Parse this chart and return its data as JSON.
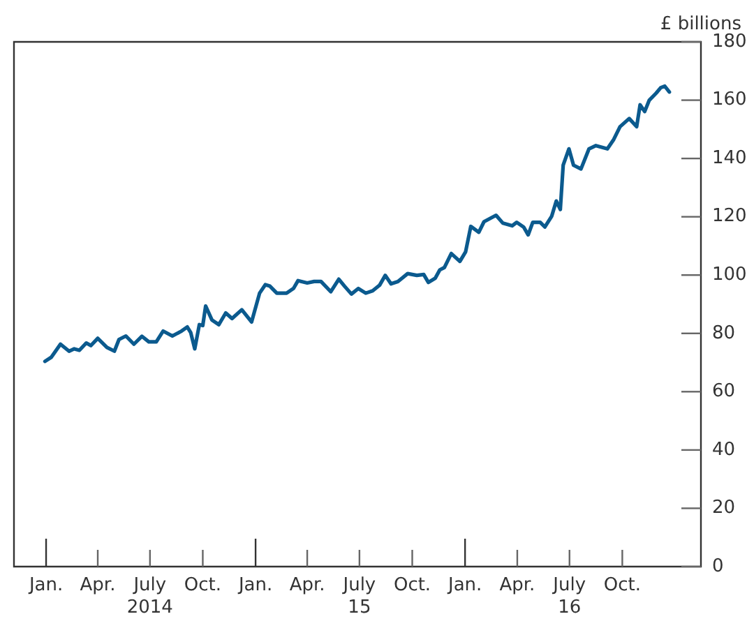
{
  "chart_data": {
    "type": "line",
    "ylabel": "£ billions",
    "color": "#0b5a8e",
    "marker": "none",
    "line_style": "solid",
    "grid": false,
    "legend": false,
    "xlim": [
      "2013-11-06",
      "2017-02-15"
    ],
    "ylim": [
      0,
      180
    ],
    "yticks": [
      0,
      20,
      40,
      60,
      80,
      100,
      120,
      140,
      160,
      180
    ],
    "xticks": [
      {
        "value": "2014-01-01",
        "label": "Jan."
      },
      {
        "value": "2014-04-01",
        "label": "Apr."
      },
      {
        "value": "2014-07-01",
        "label": "July\n2014"
      },
      {
        "value": "2014-10-01",
        "label": "Oct."
      },
      {
        "value": "2015-01-01",
        "label": "Jan."
      },
      {
        "value": "2015-04-01",
        "label": "Apr."
      },
      {
        "value": "2015-07-01",
        "label": "July\n15"
      },
      {
        "value": "2015-10-01",
        "label": "Oct."
      },
      {
        "value": "2016-01-01",
        "label": "Jan."
      },
      {
        "value": "2016-04-01",
        "label": "Apr."
      },
      {
        "value": "2016-07-01",
        "label": "July\n16"
      },
      {
        "value": "2016-10-01",
        "label": "Oct."
      }
    ],
    "x": [
      "2013-12-30",
      "2014-01-10",
      "2014-01-26",
      "2014-02-10",
      "2014-02-19",
      "2014-02-28",
      "2014-03-12",
      "2014-03-20",
      "2014-04-01",
      "2014-04-17",
      "2014-04-30",
      "2014-05-08",
      "2014-05-20",
      "2014-06-03",
      "2014-06-17",
      "2014-06-29",
      "2014-07-12",
      "2014-07-24",
      "2014-08-09",
      "2014-08-25",
      "2014-09-04",
      "2014-09-10",
      "2014-09-17",
      "2014-09-25",
      "2014-10-01",
      "2014-10-06",
      "2014-10-17",
      "2014-10-29",
      "2014-11-10",
      "2014-11-21",
      "2014-12-08",
      "2014-12-25",
      "2015-01-08",
      "2015-01-18",
      "2015-01-26",
      "2015-02-07",
      "2015-02-24",
      "2015-03-08",
      "2015-03-16",
      "2015-04-01",
      "2015-04-13",
      "2015-04-25",
      "2015-05-12",
      "2015-05-26",
      "2015-06-05",
      "2015-06-17",
      "2015-06-29",
      "2015-07-12",
      "2015-07-24",
      "2015-08-05",
      "2015-08-15",
      "2015-08-25",
      "2015-09-06",
      "2015-09-23",
      "2015-10-09",
      "2015-10-21",
      "2015-10-29",
      "2015-11-10",
      "2015-11-18",
      "2015-11-26",
      "2015-12-08",
      "2015-12-23",
      "2016-01-02",
      "2016-01-11",
      "2016-01-25",
      "2016-02-03",
      "2016-02-24",
      "2016-03-07",
      "2016-03-23",
      "2016-03-31",
      "2016-04-12",
      "2016-04-20",
      "2016-04-28",
      "2016-05-11",
      "2016-05-19",
      "2016-05-31",
      "2016-06-08",
      "2016-06-15",
      "2016-06-20",
      "2016-06-30",
      "2016-07-08",
      "2016-07-21",
      "2016-08-04",
      "2016-08-16",
      "2016-09-05",
      "2016-09-16",
      "2016-09-27",
      "2016-10-13",
      "2016-10-26",
      "2016-11-01",
      "2016-11-09",
      "2016-11-17",
      "2016-11-29",
      "2016-12-07",
      "2016-12-14",
      "2016-12-22"
    ],
    "values": [
      70.4,
      71.8,
      76.3,
      73.9,
      74.7,
      74.2,
      76.7,
      75.8,
      78.3,
      75.2,
      73.9,
      77.9,
      79.1,
      76.3,
      79.0,
      77.1,
      77.1,
      80.8,
      79.1,
      80.8,
      82.2,
      80.3,
      74.7,
      83.0,
      82.7,
      89.4,
      84.6,
      83.0,
      87.0,
      85.1,
      88.1,
      83.9,
      93.8,
      96.7,
      96.2,
      93.8,
      93.8,
      95.4,
      98.1,
      97.3,
      97.8,
      97.8,
      94.3,
      98.6,
      96.2,
      93.5,
      95.4,
      93.8,
      94.6,
      96.5,
      99.9,
      97.0,
      97.8,
      100.5,
      99.9,
      100.2,
      97.5,
      98.9,
      101.8,
      102.6,
      107.4,
      104.7,
      108.0,
      116.7,
      114.7,
      118.3,
      120.5,
      117.8,
      116.9,
      118.1,
      116.5,
      113.8,
      118.1,
      118.1,
      116.5,
      120.2,
      125.4,
      122.5,
      137.7,
      143.3,
      137.7,
      136.4,
      143.3,
      144.4,
      143.3,
      146.5,
      150.9,
      153.7,
      150.9,
      158.4,
      156.1,
      160.0,
      162.4,
      164.3,
      164.8,
      162.8
    ]
  }
}
